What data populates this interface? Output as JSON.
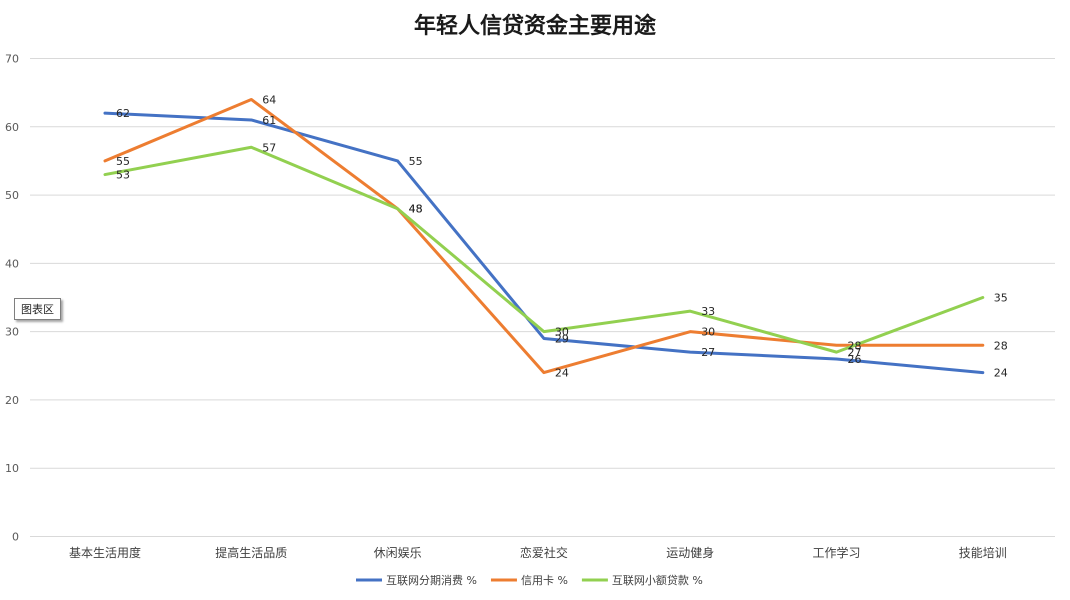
{
  "chart_data": {
    "type": "line",
    "title": "年轻人信贷资金主要用途",
    "categories": [
      "基本生活用度",
      "提高生活品质",
      "休闲娱乐",
      "恋爱社交",
      "运动健身",
      "工作学习",
      "技能培训"
    ],
    "ylim": [
      0,
      70
    ],
    "yticks": [
      0,
      10,
      20,
      30,
      40,
      50,
      60,
      70
    ],
    "grid": true,
    "legend_position": "bottom",
    "series": [
      {
        "name": "互联网分期消费 %",
        "color": "#4472c4",
        "values": [
          62,
          61,
          55,
          29,
          27,
          26,
          24
        ]
      },
      {
        "name": "信用卡 %",
        "color": "#ed7d31",
        "values": [
          55,
          64,
          48,
          24,
          30,
          28,
          28
        ]
      },
      {
        "name": "互联网小额贷款 %",
        "color": "#92d050",
        "values": [
          53,
          57,
          48,
          30,
          33,
          27,
          35
        ]
      }
    ]
  },
  "tooltip": {
    "label": "图表区"
  }
}
